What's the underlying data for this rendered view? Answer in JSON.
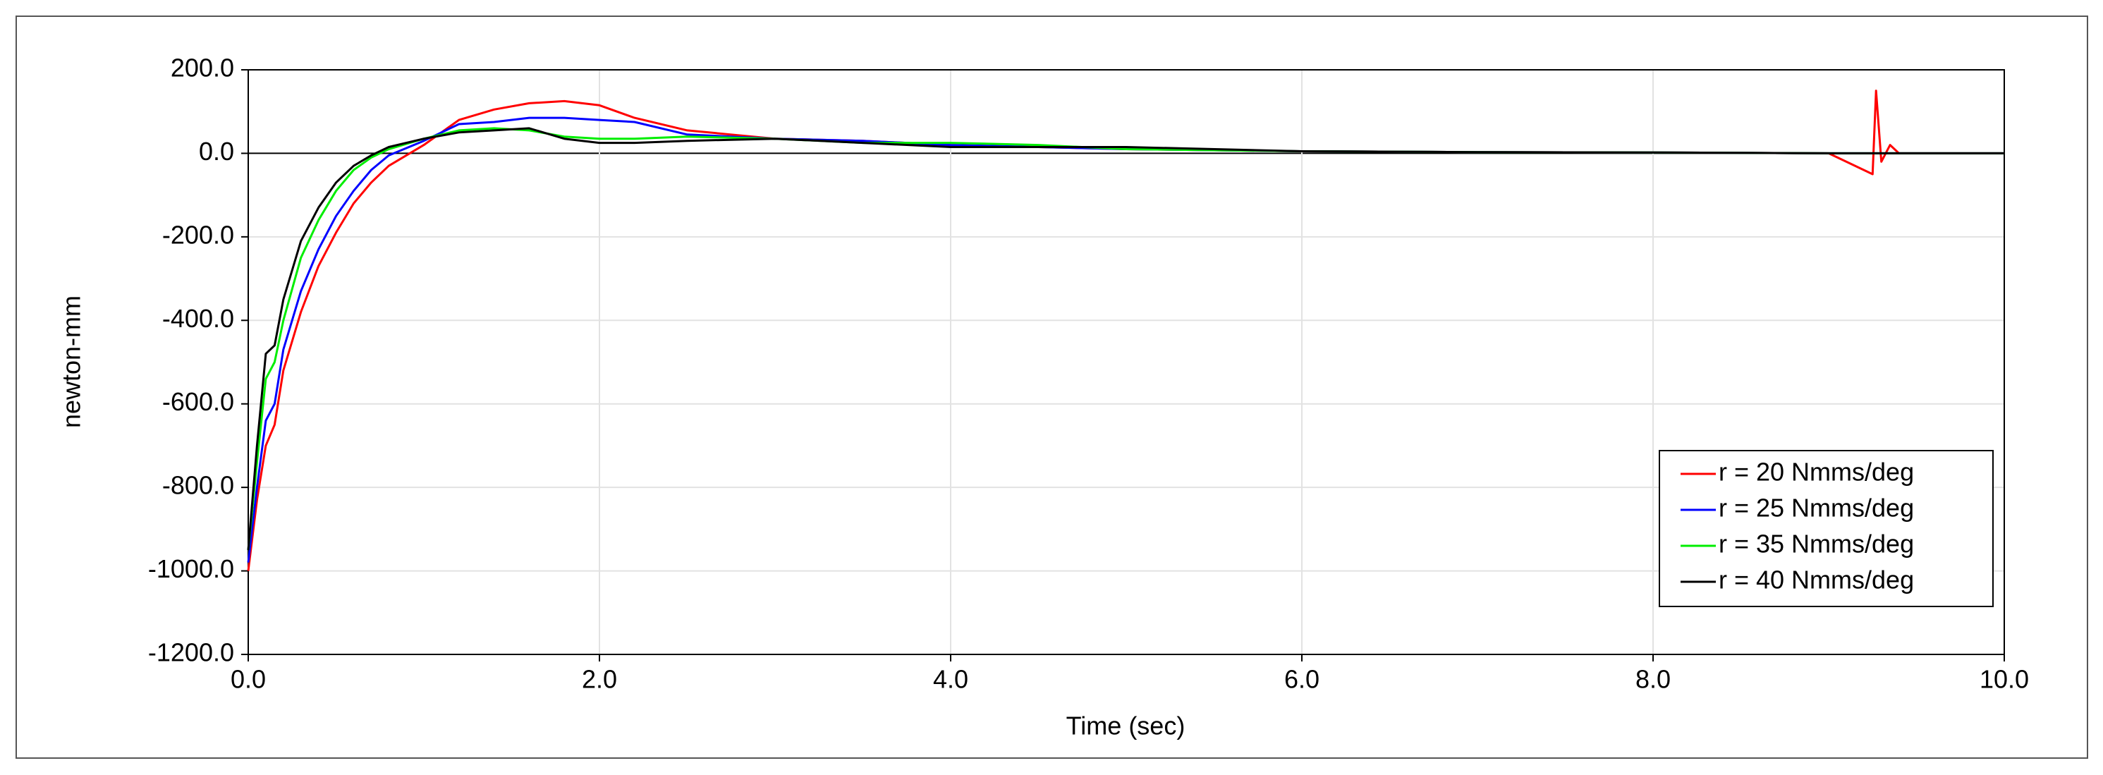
{
  "chart_data": {
    "type": "line",
    "x_label": "Time (sec)",
    "y_label": "newton-mm",
    "x": [
      0,
      0.05,
      0.1,
      0.15,
      0.2,
      0.3,
      0.4,
      0.5,
      0.6,
      0.7,
      0.8,
      1.0,
      1.2,
      1.4,
      1.6,
      1.8,
      2.0,
      2.2,
      2.5,
      3.0,
      3.5,
      4.0,
      4.5,
      5.0,
      6.0,
      7.0,
      8.0,
      9.0,
      9.25,
      9.27,
      9.3,
      9.35,
      9.4,
      10.0
    ],
    "series": [
      {
        "name": "r = 20 Nmms/deg",
        "color": "#ff0000",
        "values": [
          -1000,
          -830,
          -700,
          -650,
          -520,
          -380,
          -270,
          -190,
          -120,
          -70,
          -30,
          20,
          80,
          105,
          120,
          125,
          115,
          85,
          55,
          35,
          30,
          20,
          15,
          10,
          5,
          3,
          2,
          0,
          -50,
          150,
          -20,
          20,
          0,
          0
        ]
      },
      {
        "name": "r = 25 Nmms/deg",
        "color": "#0000ff",
        "values": [
          -980,
          -800,
          -640,
          -600,
          -470,
          -330,
          -230,
          -150,
          -90,
          -40,
          -5,
          30,
          70,
          75,
          85,
          85,
          80,
          75,
          45,
          35,
          30,
          20,
          15,
          10,
          5,
          3,
          2,
          0,
          0,
          0,
          0,
          0,
          0,
          0
        ]
      },
      {
        "name": "r = 35 Nmms/deg",
        "color": "#00ee00",
        "values": [
          -950,
          -740,
          -540,
          -500,
          -400,
          -250,
          -160,
          -90,
          -40,
          -10,
          10,
          35,
          55,
          60,
          55,
          40,
          35,
          35,
          40,
          35,
          25,
          25,
          20,
          10,
          5,
          3,
          2,
          0,
          0,
          0,
          0,
          0,
          0,
          0
        ]
      },
      {
        "name": "r = 40 Nmms/deg",
        "color": "#000000",
        "values": [
          -950,
          -700,
          -480,
          -460,
          -350,
          -210,
          -130,
          -70,
          -30,
          -5,
          15,
          35,
          50,
          55,
          60,
          35,
          25,
          25,
          30,
          35,
          25,
          15,
          15,
          15,
          5,
          3,
          2,
          0,
          0,
          0,
          0,
          0,
          0,
          0
        ]
      }
    ],
    "xlim": [
      0,
      10
    ],
    "ylim": [
      -1200,
      200
    ],
    "xticks": [
      {
        "value": 0,
        "label": "0.0"
      },
      {
        "value": 2,
        "label": "2.0"
      },
      {
        "value": 4,
        "label": "4.0"
      },
      {
        "value": 6,
        "label": "6.0"
      },
      {
        "value": 8,
        "label": "8.0"
      },
      {
        "value": 10,
        "label": "10.0"
      }
    ],
    "yticks": [
      {
        "value": -1200,
        "label": "-1200.0"
      },
      {
        "value": -1000,
        "label": "-1000.0"
      },
      {
        "value": -800,
        "label": "-800.0"
      },
      {
        "value": -600,
        "label": "-600.0"
      },
      {
        "value": -400,
        "label": "-400.0"
      },
      {
        "value": -200,
        "label": "-200.0"
      },
      {
        "value": 0,
        "label": "0.0"
      },
      {
        "value": 200,
        "label": "200.0"
      }
    ],
    "grid": true,
    "legend": "lower right"
  }
}
